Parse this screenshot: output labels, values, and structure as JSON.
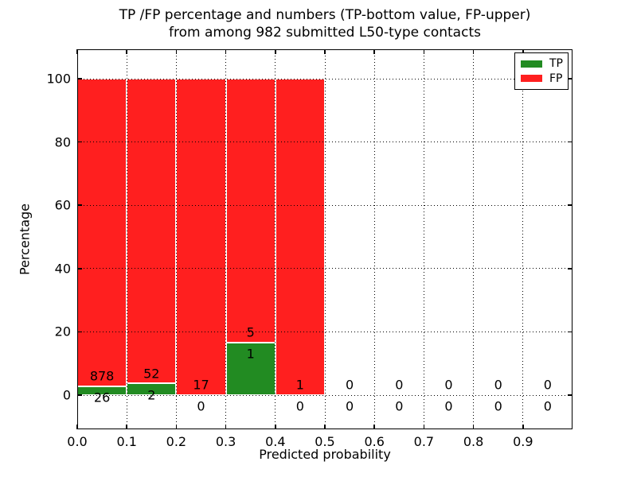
{
  "chart_data": {
    "type": "bar",
    "stacked": true,
    "percent_stacked": true,
    "title_line1": "TP /FP percentage and numbers (TP-bottom value, FP-upper)",
    "title_line2": "from among 982 submitted L50-type contacts",
    "xlabel": "Predicted probability",
    "ylabel": "Percentage",
    "total_contacts": 982,
    "xlim": [
      0.0,
      1.0
    ],
    "ylim": [
      -10.8,
      109.3
    ],
    "bin_width": 0.1,
    "x_tick_labels": [
      "0.0",
      "0.1",
      "0.2",
      "0.3",
      "0.4",
      "0.5",
      "0.6",
      "0.7",
      "0.8",
      "0.9"
    ],
    "x_tick_values": [
      0,
      0.1,
      0.2,
      0.3,
      0.4,
      0.5,
      0.6,
      0.7,
      0.8,
      0.9
    ],
    "y_tick_labels": [
      "0",
      "20",
      "40",
      "60",
      "80",
      "100"
    ],
    "y_tick_values": [
      0,
      20,
      40,
      60,
      80,
      100
    ],
    "grid": {
      "style": "dotted",
      "color": "#000000",
      "on_top": true
    },
    "categories": [
      "0.0-0.1",
      "0.1-0.2",
      "0.2-0.3",
      "0.3-0.4",
      "0.4-0.5",
      "0.5-0.6",
      "0.6-0.7",
      "0.7-0.8",
      "0.8-0.9",
      "0.9-1.0"
    ],
    "series": [
      {
        "name": "TP",
        "counts": [
          26,
          2,
          0,
          1,
          0,
          0,
          0,
          0,
          0,
          0
        ]
      },
      {
        "name": "FP",
        "counts": [
          878,
          52,
          17,
          5,
          1,
          0,
          0,
          0,
          0,
          0
        ]
      }
    ],
    "colors": {
      "tp": "#228b22",
      "fp": "#ff1f1f"
    },
    "legend": {
      "position": "upper right",
      "entries": [
        {
          "label": "TP",
          "color": "#228b22"
        },
        {
          "label": "FP",
          "color": "#ff1f1f"
        }
      ]
    }
  }
}
